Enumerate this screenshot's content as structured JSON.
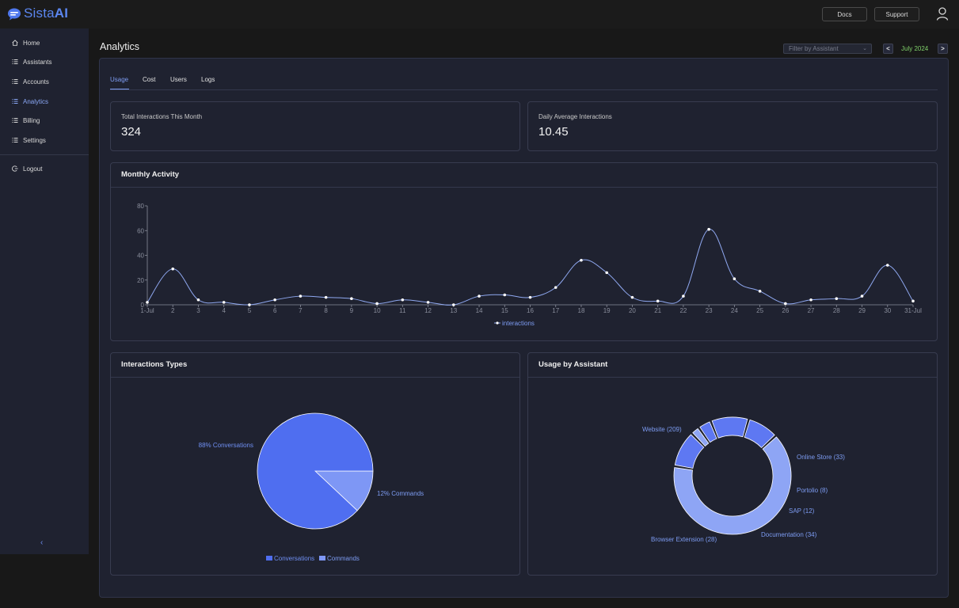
{
  "app": {
    "logo_text_light": "Sista",
    "logo_text_bold": "AI",
    "docs_label": "Docs",
    "support_label": "Support"
  },
  "sidebar": {
    "items": [
      {
        "label": "Home",
        "icon": "home-icon"
      },
      {
        "label": "Assistants",
        "icon": "list-icon"
      },
      {
        "label": "Accounts",
        "icon": "list-icon"
      },
      {
        "label": "Analytics",
        "icon": "list-icon",
        "active": true
      },
      {
        "label": "Billing",
        "icon": "list-icon"
      },
      {
        "label": "Settings",
        "icon": "list-icon"
      }
    ],
    "logout_label": "Logout",
    "collapse_glyph": "‹"
  },
  "page": {
    "title": "Analytics",
    "filter_placeholder": "Filter by Assistant",
    "prev_label": "<",
    "next_label": ">",
    "month": "July 2024"
  },
  "tabs": [
    "Usage",
    "Cost",
    "Users",
    "Logs"
  ],
  "stats": {
    "total_label": "Total Interactions This Month",
    "total_value": "324",
    "avg_label": "Daily Average Interactions",
    "avg_value": "10.45"
  },
  "monthly": {
    "title": "Monthly Activity",
    "legend": "interactions"
  },
  "types": {
    "title": "Interactions Types",
    "legend": [
      "Conversations",
      "Commands"
    ]
  },
  "assistants": {
    "title": "Usage by Assistant"
  },
  "colors": {
    "accent": "#7d9cf2",
    "line": "#8fa8f0",
    "pie_main": "#4f6ef0",
    "pie_minor": "#7e97f5",
    "donut_light": "#8ea5f5",
    "donut_dark": "#5e78f2"
  },
  "chart_data": [
    {
      "type": "line",
      "x": [
        "1-Jul",
        "2",
        "3",
        "4",
        "5",
        "6",
        "7",
        "8",
        "9",
        "10",
        "11",
        "12",
        "13",
        "14",
        "15",
        "16",
        "17",
        "18",
        "19",
        "20",
        "21",
        "22",
        "23",
        "24",
        "25",
        "26",
        "27",
        "28",
        "29",
        "30",
        "31-Jul"
      ],
      "series": [
        {
          "name": "interactions",
          "values": [
            2,
            29,
            4,
            2,
            0,
            4,
            7,
            6,
            5,
            1,
            4,
            2,
            0,
            7,
            8,
            6,
            14,
            36,
            26,
            6,
            3,
            7,
            61,
            21,
            11,
            1,
            4,
            5,
            7,
            32,
            3
          ]
        }
      ],
      "ylim": [
        0,
        80
      ],
      "yticks": [
        0,
        20,
        40,
        60,
        80
      ],
      "grid": false,
      "legend": "bottom-center"
    },
    {
      "type": "pie",
      "labels": [
        "Conversations",
        "Commands"
      ],
      "values": [
        88,
        12
      ],
      "data_labels": [
        "88% Conversations",
        "12% Commands"
      ],
      "legend": "bottom-center"
    },
    {
      "type": "pie",
      "subtype": "donut",
      "labels": [
        "Website",
        "Online Store",
        "Portolio",
        "SAP",
        "Documentation",
        "Browser Extension"
      ],
      "values": [
        209,
        33,
        8,
        12,
        34,
        28
      ],
      "data_labels": [
        "Website (209)",
        "Online Store (33)",
        "Portolio (8)",
        "SAP (12)",
        "Documentation (34)",
        "Browser Extension (28)"
      ]
    }
  ]
}
